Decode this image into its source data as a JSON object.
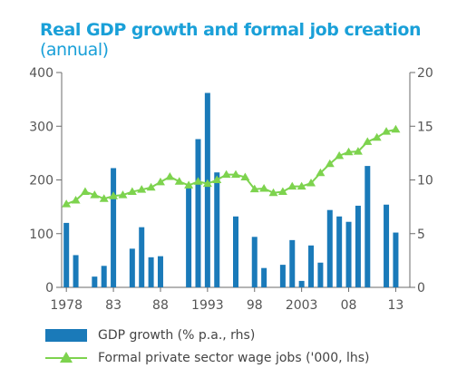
{
  "chart_data": {
    "type": "bar",
    "title": "Real GDP growth and formal job creation",
    "subtitle": "(annual)",
    "x": [
      1978,
      1979,
      1980,
      1981,
      1982,
      1983,
      1984,
      1985,
      1986,
      1987,
      1988,
      1989,
      1990,
      1991,
      1992,
      1993,
      1994,
      1995,
      1996,
      1997,
      1998,
      1999,
      2000,
      2001,
      2002,
      2003,
      2004,
      2005,
      2006,
      2007,
      2008,
      2009,
      2010,
      2011,
      2012,
      2013,
      2014
    ],
    "x_tick_labels": [
      {
        "x": 1978,
        "label": "1978"
      },
      {
        "x": 1983,
        "label": "83"
      },
      {
        "x": 1988,
        "label": "88"
      },
      {
        "x": 1993,
        "label": "1993"
      },
      {
        "x": 1998,
        "label": "98"
      },
      {
        "x": 2003,
        "label": "2003"
      },
      {
        "x": 2008,
        "label": "08"
      },
      {
        "x": 2013,
        "label": "13"
      }
    ],
    "left_axis": {
      "ylim": [
        0,
        400
      ],
      "ticks": [
        "0",
        "100",
        "200",
        "300",
        "400"
      ]
    },
    "right_axis": {
      "ylim": [
        0,
        20
      ],
      "ticks": [
        "0",
        "5",
        "10",
        "15",
        "20"
      ]
    },
    "grid": false,
    "legend_position": "bottom-left",
    "series": [
      {
        "name": "GDP growth (% p.a., rhs)",
        "type": "bar",
        "axis": "right",
        "color": "#1a7ab9",
        "values": [
          6,
          3,
          0,
          1,
          2,
          11.1,
          0,
          3.6,
          5.6,
          2.8,
          2.9,
          0,
          0,
          9.6,
          13.8,
          18.1,
          10.7,
          0,
          6.6,
          0,
          4.7,
          1.8,
          0,
          2.1,
          4.4,
          0.6,
          3.9,
          2.3,
          7.2,
          6.6,
          6.1,
          7.6,
          11.3,
          0,
          7.7,
          5.1,
          0
        ]
      },
      {
        "name": "Formal private sector wage jobs ('000, lhs)",
        "type": "line",
        "axis": "left",
        "color": "#7dd34e",
        "values": [
          155,
          162,
          178,
          172,
          165,
          170,
          172,
          178,
          182,
          186,
          196,
          206,
          197,
          190,
          197,
          193,
          200,
          210,
          210,
          205,
          183,
          184,
          176,
          178,
          188,
          188,
          194,
          213,
          230,
          245,
          252,
          253,
          271,
          279,
          290,
          294,
          null
        ]
      }
    ]
  }
}
